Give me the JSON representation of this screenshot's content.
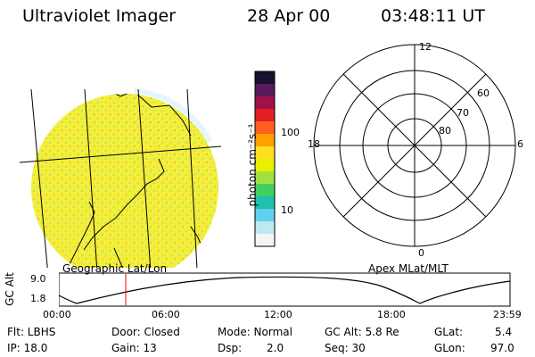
{
  "header": {
    "title": "Ultraviolet Imager",
    "date": "28 Apr 00",
    "time": "03:48:11 UT"
  },
  "colorbar": {
    "unit_label": "photon cm⁻²s⁻¹",
    "ticks": [
      "100",
      "10"
    ],
    "colors_top_to_bottom": [
      "#1a1030",
      "#5a1a5a",
      "#a0104a",
      "#e02020",
      "#ff6020",
      "#ffa000",
      "#ffe020",
      "#e8f000",
      "#a0e040",
      "#40d060",
      "#20c0b0",
      "#60d0f0",
      "#c0e8f0",
      "#f4f4f4"
    ]
  },
  "left_panel": {
    "caption": "Geographic Lat/Lon",
    "image_colors": {
      "fill": "#f2ef3a",
      "speckle_green": "#b8e06a",
      "speckle_orange": "#f6c431",
      "limb": "#dff3ff"
    }
  },
  "right_panel": {
    "caption": "Apex MLat/MLT",
    "mlt_labels": [
      "12",
      "18",
      "6",
      "0"
    ],
    "mlat_labels": [
      "60",
      "70",
      "80"
    ]
  },
  "altitude_plot": {
    "ylabel": "GC Alt",
    "y_ticks": [
      "9.0",
      "1.8"
    ],
    "x_ticks": [
      "00:00",
      "06:00",
      "12:00",
      "18:00",
      "23:59"
    ],
    "current_time_color": "#ff0000"
  },
  "info": {
    "filter": "Flt: LBHS",
    "door": "Door: Closed",
    "mode": "Mode: Normal",
    "gc_alt": "GC Alt: 5.8 Re",
    "glat_label": "GLat:",
    "glat_value": "5.4",
    "ip": "IP: 18.0",
    "gain": "Gain: 13",
    "dsp_label": "Dsp:",
    "dsp_value": "2.0",
    "seq": "Seq: 30",
    "glon_label": "GLon:",
    "glon_value": "97.0"
  }
}
